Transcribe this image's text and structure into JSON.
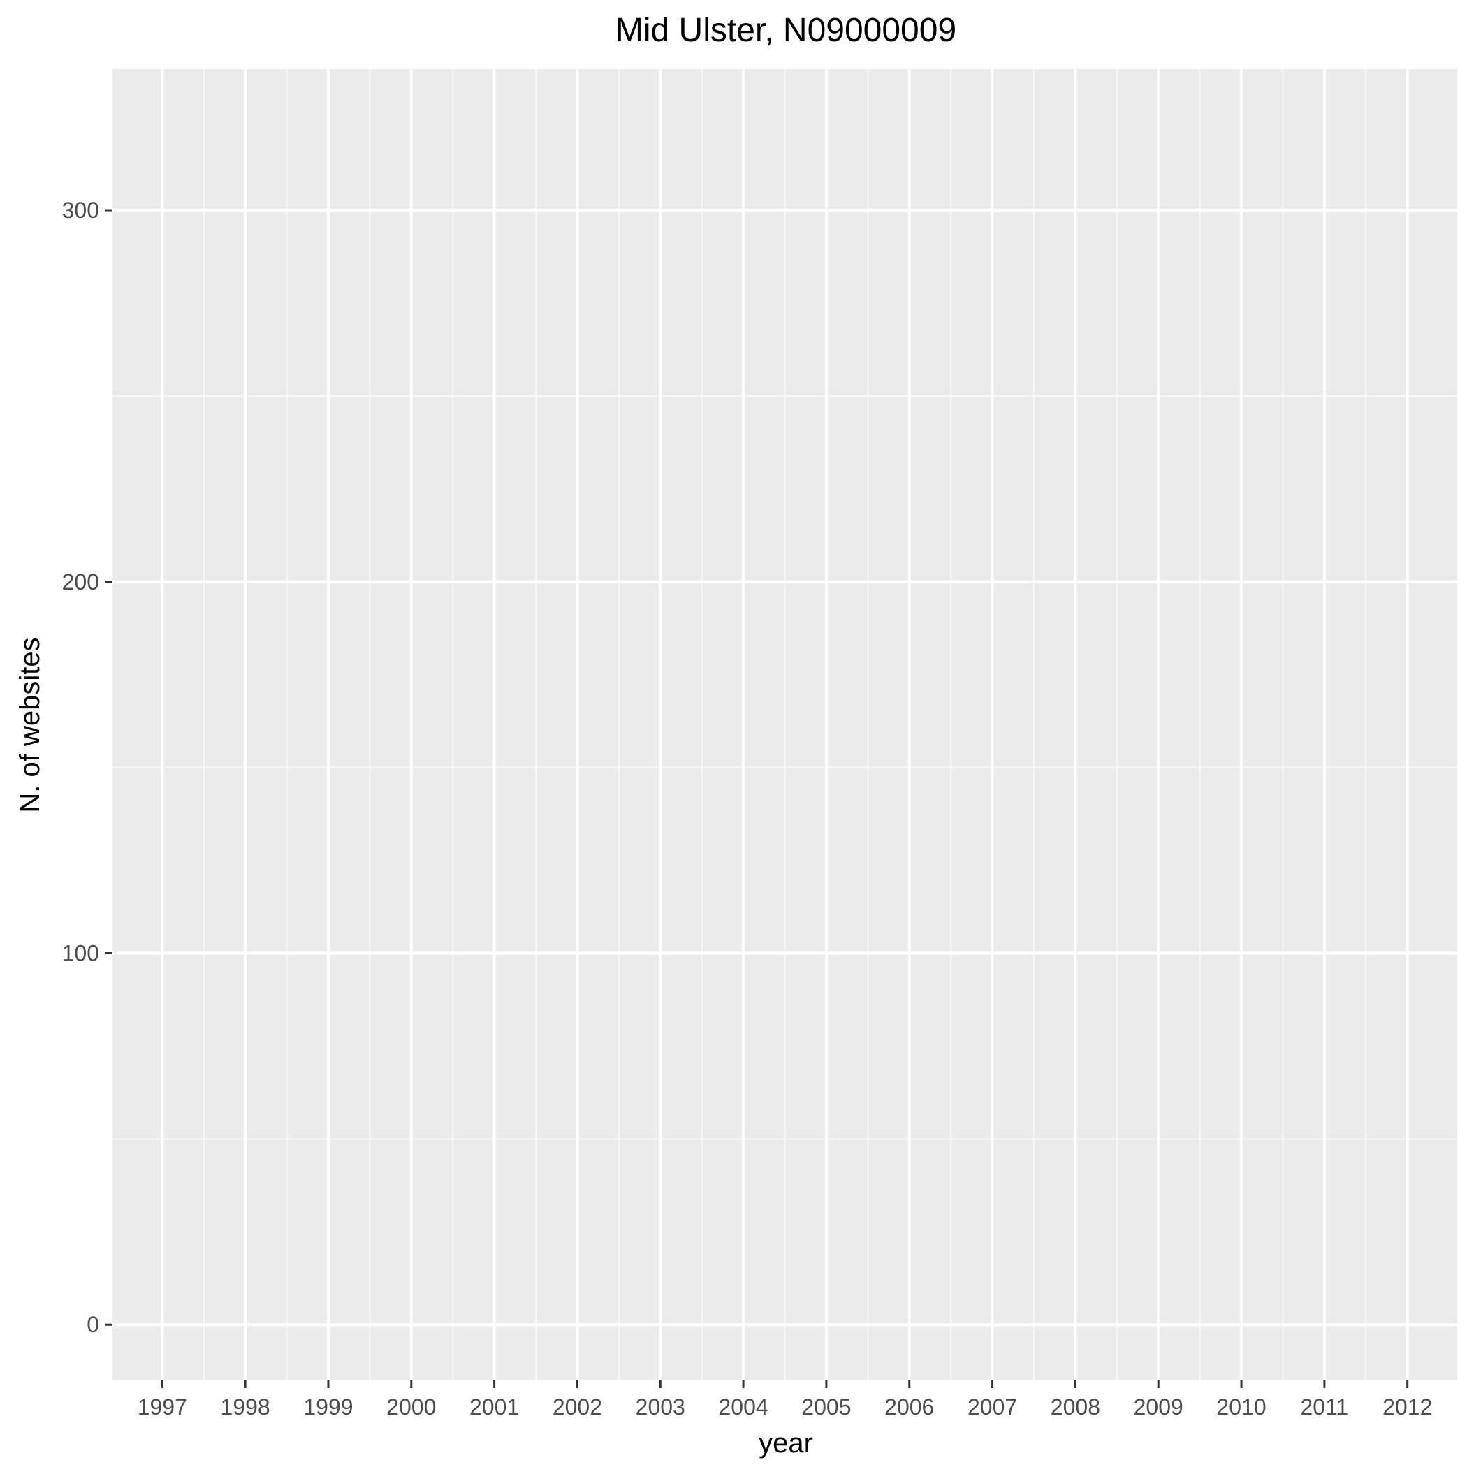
{
  "chart_data": {
    "type": "line",
    "title": "Mid Ulster, N09000009",
    "xlabel": "year",
    "ylabel": "N. of websites",
    "categories": [
      "1997",
      "1998",
      "1999",
      "2000",
      "2001",
      "2002",
      "2003",
      "2004",
      "2005",
      "2006",
      "2007",
      "2008",
      "2009",
      "2010",
      "2011",
      "2012"
    ],
    "x_ticks": [
      "1997",
      "1998",
      "1999",
      "2000",
      "2001",
      "2002",
      "2003",
      "2004",
      "2005",
      "2006",
      "2007",
      "2008",
      "2009",
      "2010",
      "2011",
      "2012"
    ],
    "y_ticks": [
      0,
      100,
      200,
      300
    ],
    "y_tick_labels": [
      "0",
      "100",
      "200",
      "300"
    ],
    "ylim": [
      -15,
      338
    ],
    "series": [],
    "grid": true,
    "legend": "none",
    "colors": {
      "panel_background": "#ebebeb",
      "grid_major": "#ffffff",
      "grid_minor": "#f7f7f7",
      "tick_mark": "#333333",
      "tick_text": "#4d4d4d",
      "title_text": "#000000"
    }
  }
}
